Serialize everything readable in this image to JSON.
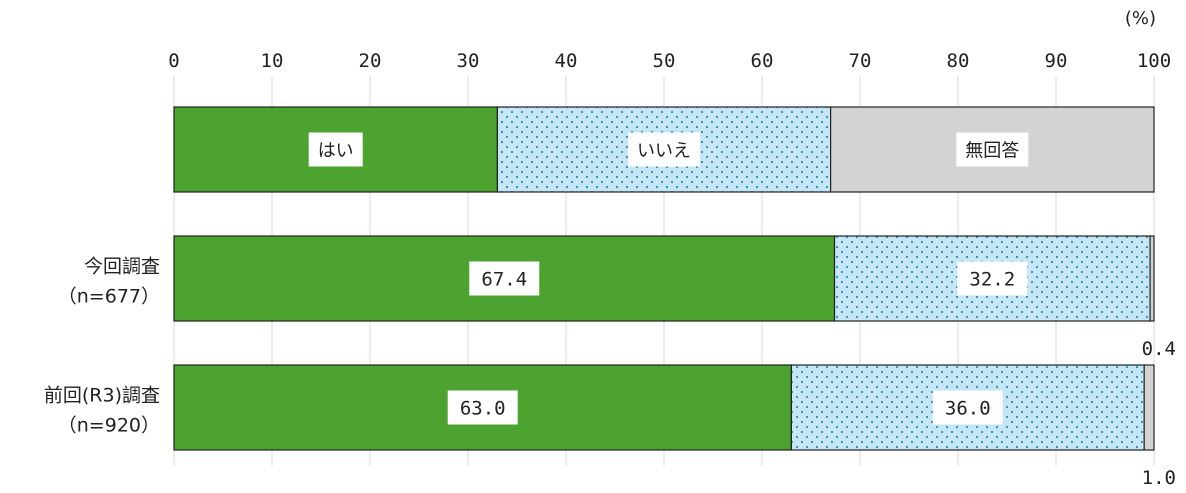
{
  "chart_data": {
    "type": "bar",
    "orientation": "horizontal",
    "stacked": true,
    "unit_label": "(%)",
    "xlim": [
      0,
      100
    ],
    "x_ticks": [
      0,
      10,
      20,
      30,
      40,
      50,
      60,
      70,
      80,
      90,
      100
    ],
    "grid": true,
    "legend": {
      "placement": "top",
      "style": "stacked-bar",
      "items": [
        {
          "label": "はい",
          "span": [
            0,
            33
          ]
        },
        {
          "label": "いいえ",
          "span": [
            33,
            67
          ]
        },
        {
          "label": "無回答",
          "span": [
            67,
            100
          ]
        }
      ]
    },
    "categories": [
      {
        "label": "今回調査",
        "sublabel": "（n=677）"
      },
      {
        "label": "前回(R3)調査",
        "sublabel": "（n=920）"
      }
    ],
    "series": [
      {
        "name": "はい",
        "values": [
          67.4,
          63.0
        ],
        "labels": [
          "67.4",
          "63.0"
        ],
        "color": "#4da32f",
        "pattern": "solid"
      },
      {
        "name": "いいえ",
        "values": [
          32.2,
          36.0
        ],
        "labels": [
          "32.2",
          "36.0"
        ],
        "color": "#c5e6f7",
        "pattern": "dots",
        "dot_color": "#2e8fa8"
      },
      {
        "name": "無回答",
        "values": [
          0.4,
          1.0
        ],
        "labels": [
          "0.4",
          "1.0"
        ],
        "color": "#d3d3d3",
        "pattern": "solid"
      }
    ]
  }
}
